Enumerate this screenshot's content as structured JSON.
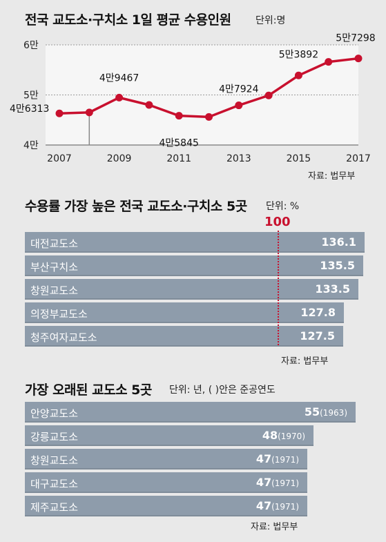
{
  "chart_data": [
    {
      "type": "line",
      "title": "전국 교도소·구치소 1일 평균 수용인원",
      "unit": "단위:명",
      "x": [
        2007,
        2008,
        2009,
        2010,
        2011,
        2012,
        2013,
        2014,
        2015,
        2016,
        2017
      ],
      "values": [
        46313,
        46500,
        49467,
        48000,
        45845,
        45600,
        47924,
        49900,
        53892,
        56600,
        57298
      ],
      "point_labels": {
        "0": "4만6313",
        "2": "4만9467",
        "4": "4만5845",
        "6": "4만7924",
        "8": "5만3892",
        "10": "5만7298"
      },
      "ylim": [
        40000,
        60000
      ],
      "yticks": [
        40000,
        50000,
        60000
      ],
      "ytick_labels": [
        "4만",
        "5만",
        "6만"
      ],
      "xtick_labels": [
        "2007",
        "2009",
        "2011",
        "2013",
        "2015",
        "2017"
      ],
      "source": "자료: 법무부",
      "color": "#c8102e"
    },
    {
      "type": "bar",
      "title": "수용률 가장 높은 전국 교도소·구치소 5곳",
      "unit": "단위: %",
      "reference": "100",
      "categories": [
        "대전교도소",
        "부산구치소",
        "창원교도소",
        "의정부교도소",
        "청주여자교도소"
      ],
      "values": [
        136.1,
        135.5,
        133.5,
        127.8,
        127.5
      ],
      "value_labels": [
        "136.1",
        "135.5",
        "133.5",
        "127.8",
        "127.5"
      ],
      "source": "자료: 법무부"
    },
    {
      "type": "bar",
      "title": "가장 오래된 교도소 5곳",
      "unit": "단위: 년, (  )안은 준공연도",
      "categories": [
        "안양교도소",
        "강릉교도소",
        "창원교도소",
        "대구교도소",
        "제주교도소"
      ],
      "values": [
        55,
        48,
        47,
        47,
        47
      ],
      "years": [
        "(1963)",
        "(1970)",
        "(1971)",
        "(1971)",
        "(1971)"
      ],
      "source": "자료: 법무부"
    }
  ]
}
